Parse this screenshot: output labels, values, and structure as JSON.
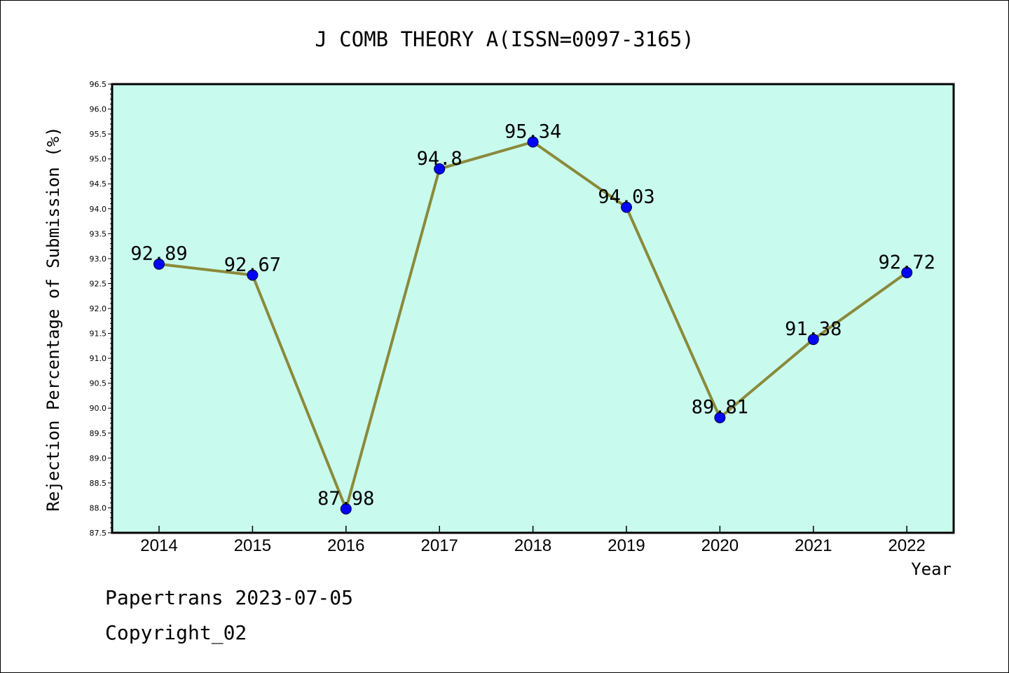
{
  "chart_data": {
    "type": "line",
    "title": "J COMB THEORY A(ISSN=0097-3165)",
    "xlabel": "Year",
    "ylabel": "Rejection Percentage of Submission (%)",
    "categories": [
      "2014",
      "2015",
      "2016",
      "2017",
      "2018",
      "2019",
      "2020",
      "2021",
      "2022"
    ],
    "series": [
      {
        "values": [
          92.89,
          92.67,
          87.98,
          94.8,
          95.34,
          94.03,
          89.81,
          91.38,
          92.72
        ]
      }
    ],
    "data_labels": [
      "92.89",
      "92.67",
      "87.98",
      "94.8",
      "95.34",
      "94.03",
      "89.81",
      "91.38",
      "92.72"
    ],
    "ylim": [
      87.5,
      96.5
    ],
    "yticks": [
      "87.5",
      "88.0",
      "88.5",
      "89.0",
      "89.5",
      "90.0",
      "90.5",
      "91.0",
      "91.5",
      "92.0",
      "92.5",
      "93.0",
      "93.5",
      "94.0",
      "94.5",
      "95.0",
      "95.5",
      "96.0",
      "96.5"
    ],
    "grid": false,
    "colors": {
      "plot_background": "#c8fbee",
      "line": "#8b8a3a",
      "marker": "#0000ff"
    }
  },
  "footer": {
    "source": "Papertrans 2023-07-05",
    "copyright": "Copyright_02"
  }
}
